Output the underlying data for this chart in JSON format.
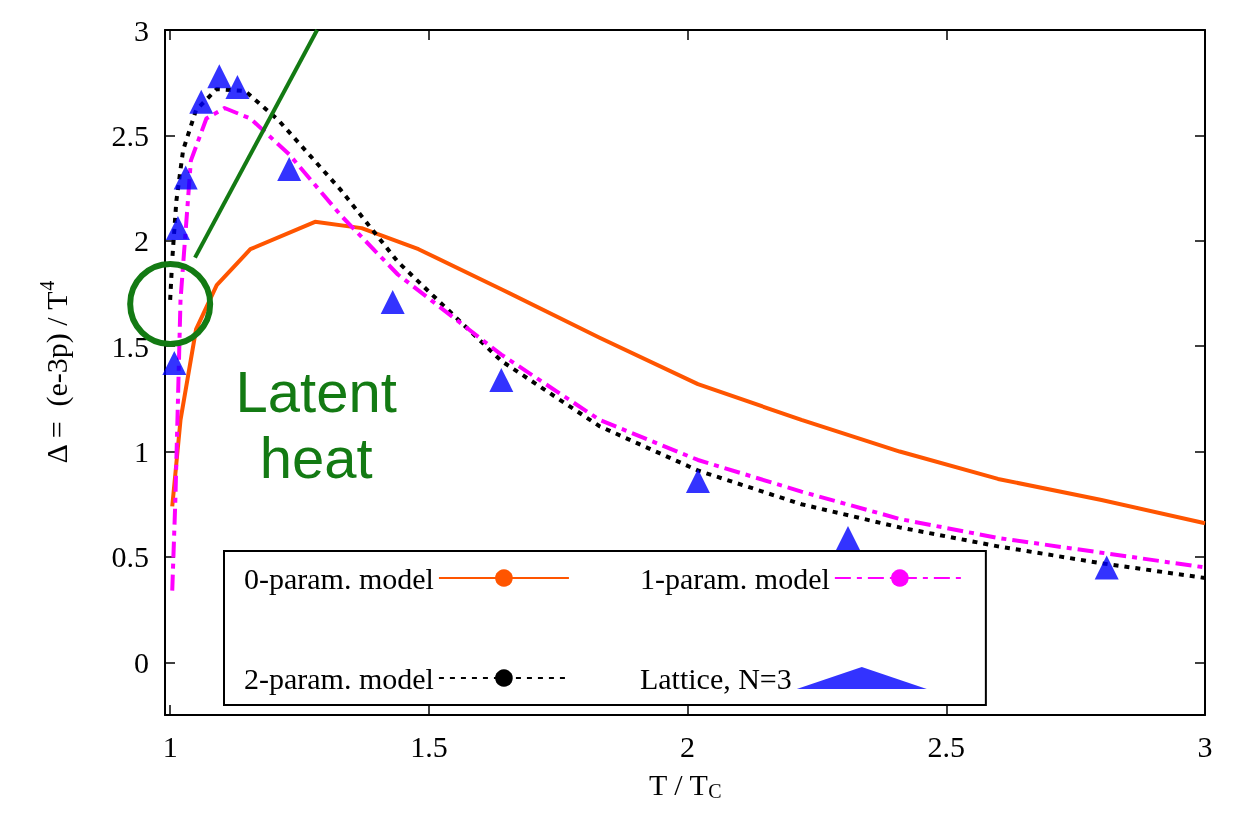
{
  "chart_data": {
    "type": "line",
    "xlabel": "T / T$_{C}$",
    "ylabel": "Δ =  (e-3p) / T$^{4}$",
    "xlim": [
      0.99,
      3
    ],
    "xticks": [
      1,
      1.5,
      2,
      2.5,
      3
    ],
    "ylim": [
      -0.25,
      3
    ],
    "yticks": [
      0,
      0.5,
      1,
      1.5,
      2,
      2.5,
      3
    ],
    "grid": false,
    "legend": "bottom",
    "annotations": [
      {
        "text": "Latent heat",
        "x": 1.0,
        "y": 1.7
      }
    ],
    "series": [
      {
        "name": "0-param. model",
        "color": "#ff5500",
        "line_style": "solid",
        "marker": "none",
        "x": [
          1.004,
          1.02,
          1.05,
          1.09,
          1.155,
          1.28,
          1.37,
          1.48,
          1.64,
          1.83,
          2.02,
          2.22,
          2.41,
          2.6,
          2.8,
          3.0
        ],
        "values": [
          0.74,
          1.15,
          1.58,
          1.79,
          1.96,
          2.09,
          2.06,
          1.96,
          1.77,
          1.54,
          1.32,
          1.15,
          1.0,
          0.87,
          0.77,
          0.66
        ]
      },
      {
        "name": "2-param. model",
        "color": "#000000",
        "line_style": "dotted",
        "marker": "none",
        "x": [
          1.0,
          1.004,
          1.012,
          1.025,
          1.05,
          1.09,
          1.145,
          1.21,
          1.33,
          1.44,
          1.64,
          1.83,
          2.02,
          2.22,
          2.41,
          2.6,
          2.8,
          3.0
        ],
        "values": [
          1.72,
          1.91,
          2.19,
          2.43,
          2.62,
          2.72,
          2.71,
          2.57,
          2.24,
          1.9,
          1.43,
          1.12,
          0.91,
          0.75,
          0.64,
          0.55,
          0.47,
          0.4
        ]
      },
      {
        "name": "1-param. model",
        "color": "#ff00ff",
        "line_style": "dashdot",
        "marker": "none",
        "x": [
          1.004,
          1.01,
          1.015,
          1.02,
          1.03,
          1.04,
          1.07,
          1.105,
          1.155,
          1.23,
          1.33,
          1.44,
          1.64,
          1.83,
          2.02,
          2.22,
          2.41,
          2.6,
          2.8,
          3.0
        ],
        "values": [
          0.34,
          0.77,
          1.24,
          1.72,
          2.05,
          2.38,
          2.58,
          2.63,
          2.58,
          2.41,
          2.12,
          1.84,
          1.46,
          1.15,
          0.96,
          0.81,
          0.68,
          0.59,
          0.52,
          0.45
        ]
      },
      {
        "name": "Lattice, N=3",
        "type": "scatter",
        "color": "#0000ff",
        "marker": "triangle",
        "x": [
          1.008,
          1.015,
          1.03,
          1.06,
          1.095,
          1.13,
          1.23,
          1.43,
          1.64,
          2.02,
          2.31,
          2.81
        ],
        "values": [
          1.42,
          2.06,
          2.3,
          2.66,
          2.78,
          2.73,
          2.34,
          1.71,
          1.34,
          0.86,
          0.59,
          0.45
        ]
      },
      {
        "color": "#137a13",
        "line_style": "solid",
        "marker": "none",
        "x": [
          1.048,
          1.284
        ],
        "values": [
          1.92,
          3.0
        ]
      }
    ]
  }
}
